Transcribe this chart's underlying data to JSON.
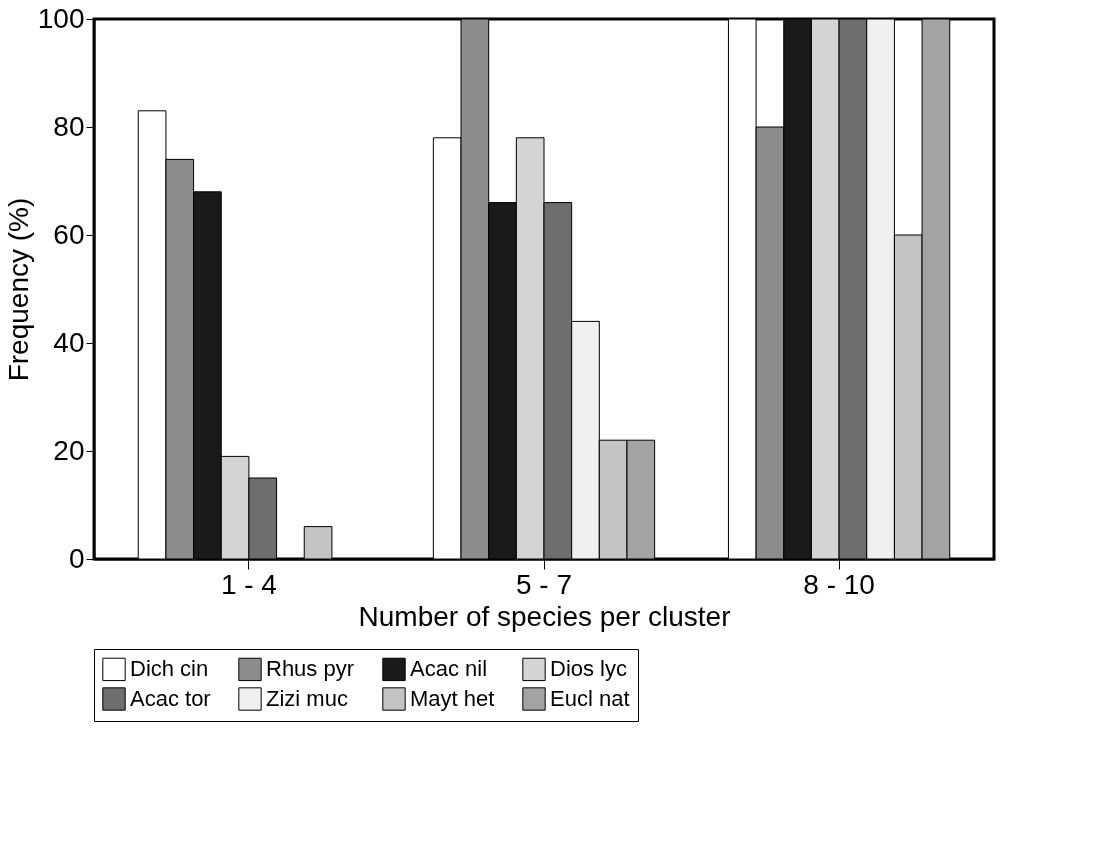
{
  "chart_data": {
    "type": "bar",
    "xlabel": "Number of species per cluster",
    "ylabel": "Frequency (%)",
    "categories": [
      "1 - 4",
      "5 - 7",
      "8 - 10"
    ],
    "series": [
      {
        "name": "Dich cin",
        "color": "#ffffff",
        "values": [
          83,
          78,
          100
        ]
      },
      {
        "name": "Rhus pyr",
        "color": "#8c8c8c",
        "values": [
          74,
          100,
          80
        ]
      },
      {
        "name": "Acac nil",
        "color": "#1a1a1a",
        "values": [
          68,
          66,
          100
        ]
      },
      {
        "name": "Dios lyc",
        "color": "#d4d4d4",
        "values": [
          19,
          78,
          100
        ]
      },
      {
        "name": "Acac tor",
        "color": "#6e6e6e",
        "values": [
          15,
          66,
          100
        ]
      },
      {
        "name": "Zizi muc",
        "color": "#f0f0f0",
        "values": [
          0,
          44,
          100
        ]
      },
      {
        "name": "Mayt het",
        "color": "#c4c4c4",
        "values": [
          6,
          22,
          60
        ]
      },
      {
        "name": "Eucl nat",
        "color": "#a3a3a3",
        "values": [
          0,
          22,
          100
        ]
      }
    ],
    "ylim": [
      0,
      100
    ],
    "yticks": [
      0,
      20,
      40,
      60,
      80,
      100
    ],
    "grid": false,
    "legend": "bottom"
  }
}
